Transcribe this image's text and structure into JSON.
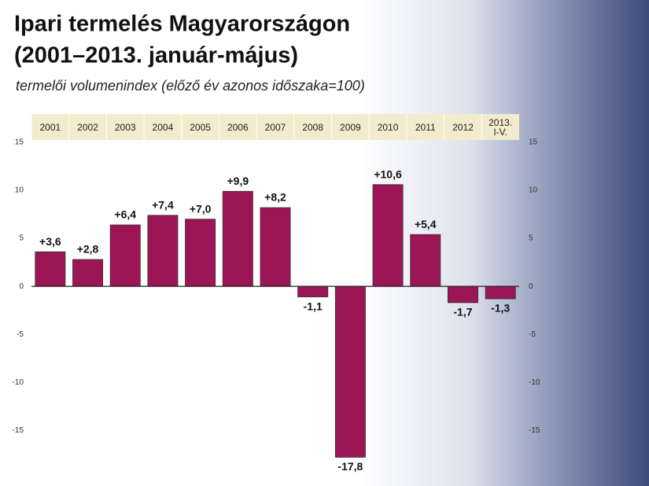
{
  "chart_data": {
    "type": "bar",
    "title": [
      "Ipari termelés Magyarországon",
      "(2001–2013. január-május)"
    ],
    "subtitle": "termelői volumenindex (előző év azonos időszaka=100)",
    "categories": [
      "2001",
      "2002",
      "2003",
      "2004",
      "2005",
      "2006",
      "2007",
      "2008",
      "2009",
      "2010",
      "2011",
      "2012",
      "2013. I-V."
    ],
    "values": [
      3.6,
      2.8,
      6.4,
      7.4,
      7.0,
      9.9,
      8.2,
      -1.1,
      -17.8,
      10.6,
      5.4,
      -1.7,
      -1.3
    ],
    "value_labels": [
      "+3,6",
      "+2,8",
      "+6,4",
      "+7,4",
      "+7,0",
      "+9,9",
      "+8,2",
      "-1,1",
      "-17,8",
      "+10,6",
      "+5,4",
      "-1,7",
      "-1,3"
    ],
    "color": "#9c1656",
    "ylim": [
      -18.5,
      15
    ],
    "yticks": [
      15,
      10,
      5,
      0,
      -5,
      -10,
      -15
    ],
    "grid": false
  }
}
